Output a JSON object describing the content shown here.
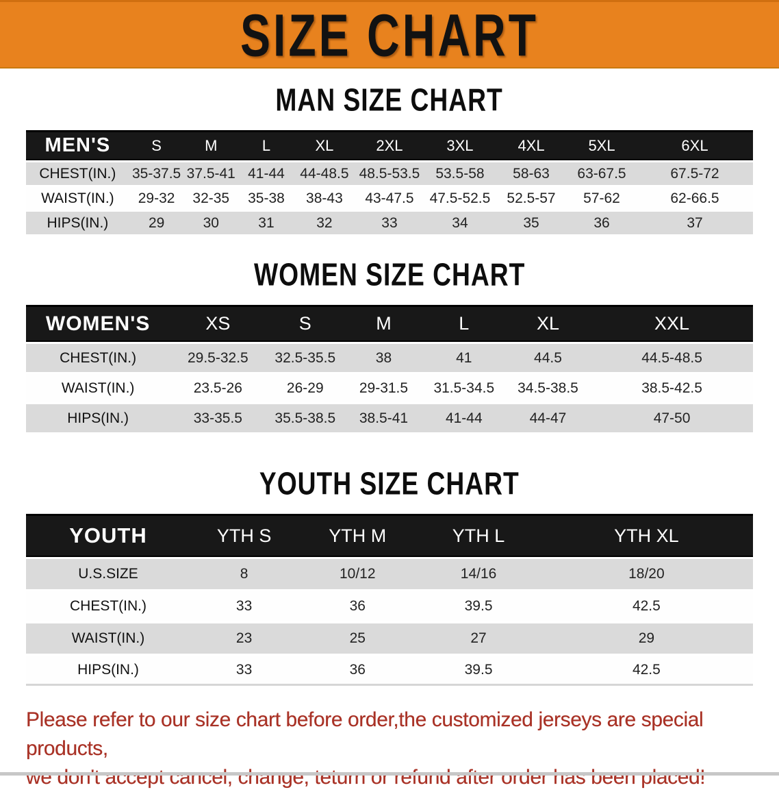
{
  "banner": {
    "title": "SIZE CHART",
    "bg_color": "#E8821E",
    "text_color": "#121212"
  },
  "sections": [
    {
      "key": "men",
      "title": "MAN SIZE CHART",
      "table": {
        "header_label": "MEN'S",
        "columns": [
          "S",
          "M",
          "L",
          "XL",
          "2XL",
          "3XL",
          "4XL",
          "5XL",
          "6XL"
        ],
        "rows": [
          {
            "label": "CHEST(IN.)",
            "values": [
              "35-37.5",
              "37.5-41",
              "41-44",
              "44-48.5",
              "48.5-53.5",
              "53.5-58",
              "58-63",
              "63-67.5",
              "67.5-72"
            ]
          },
          {
            "label": "WAIST(IN.)",
            "values": [
              "29-32",
              "32-35",
              "35-38",
              "38-43",
              "43-47.5",
              "47.5-52.5",
              "52.5-57",
              "57-62",
              "62-66.5"
            ]
          },
          {
            "label": "HIPS(IN.)",
            "values": [
              "29",
              "30",
              "31",
              "32",
              "33",
              "34",
              "35",
              "36",
              "37"
            ]
          }
        ]
      }
    },
    {
      "key": "women",
      "title": "WOMEN SIZE CHART",
      "table": {
        "header_label": "WOMEN'S",
        "columns": [
          "XS",
          "S",
          "M",
          "L",
          "XL",
          "XXL"
        ],
        "rows": [
          {
            "label": "CHEST(IN.)",
            "values": [
              "29.5-32.5",
              "32.5-35.5",
              "38",
              "41",
              "44.5",
              "44.5-48.5"
            ]
          },
          {
            "label": "WAIST(IN.)",
            "values": [
              "23.5-26",
              "26-29",
              "29-31.5",
              "31.5-34.5",
              "34.5-38.5",
              "38.5-42.5"
            ]
          },
          {
            "label": "HIPS(IN.)",
            "values": [
              "33-35.5",
              "35.5-38.5",
              "38.5-41",
              "41-44",
              "44-47",
              "47-50"
            ]
          }
        ]
      }
    },
    {
      "key": "youth",
      "title": "YOUTH SIZE CHART",
      "table": {
        "header_label": "YOUTH",
        "columns": [
          "YTH S",
          "YTH M",
          "YTH L",
          "YTH XL"
        ],
        "rows": [
          {
            "label": "U.S.SIZE",
            "values": [
              "8",
              "10/12",
              "14/16",
              "18/20"
            ]
          },
          {
            "label": "CHEST(IN.)",
            "values": [
              "33",
              "36",
              "39.5",
              "42.5"
            ]
          },
          {
            "label": "WAIST(IN.)",
            "values": [
              "23",
              "25",
              "27",
              "29"
            ]
          },
          {
            "label": "HIPS(IN.)",
            "values": [
              "33",
              "36",
              "39.5",
              "42.5"
            ]
          }
        ]
      }
    }
  ],
  "footer": {
    "line1": "Please refer to our size chart before order,the customized jerseys are special products,",
    "line2": "we don't accept cancel, change, teturn or refund after order has been placed!",
    "text_color": "#A93226"
  },
  "colors": {
    "banner_orange": "#E8821E",
    "header_black": "#181818",
    "row_gray": "#dadada",
    "row_white": "#fefefe",
    "note_red": "#A93226"
  }
}
